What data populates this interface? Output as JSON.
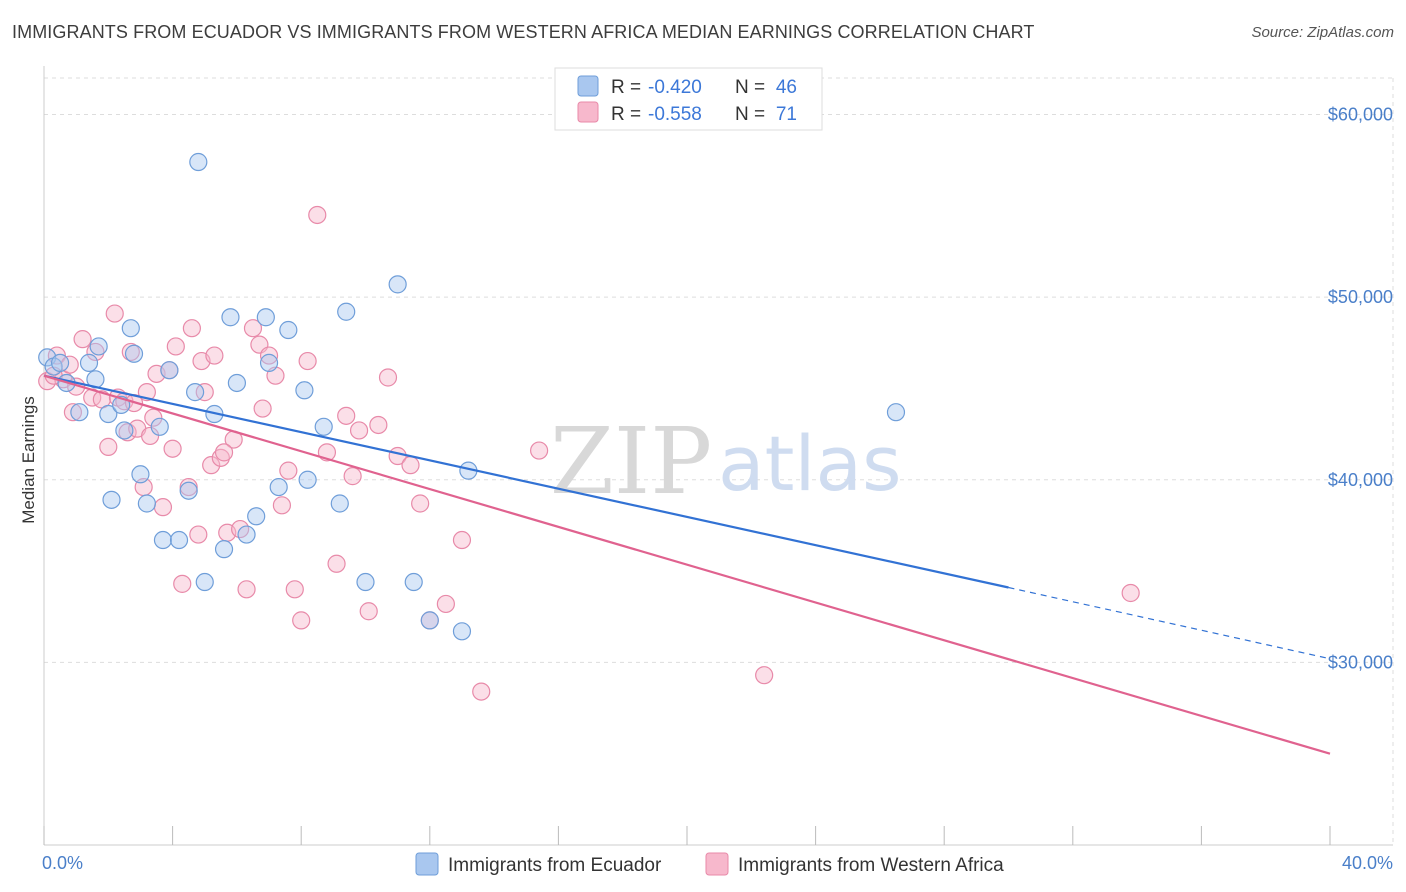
{
  "title": "IMMIGRANTS FROM ECUADOR VS IMMIGRANTS FROM WESTERN AFRICA MEDIAN EARNINGS CORRELATION CHART",
  "source": "Source: ZipAtlas.com",
  "watermark": {
    "zip": "ZIP",
    "atlas": "atlas"
  },
  "colors": {
    "ecuador_fill": "#a9c7ef",
    "ecuador_stroke": "#6f9ed9",
    "ecuador_line": "#3272d4",
    "africa_fill": "#f7b8cc",
    "africa_stroke": "#e88aa9",
    "africa_line": "#e0628f",
    "tick_label": "#4a7fc9",
    "grid": "#dddddd"
  },
  "legend": {
    "r_label": "R =",
    "n_label": "N =",
    "ecuador": {
      "r": "-0.420",
      "n": "46"
    },
    "africa": {
      "r": "-0.558",
      "n": "71"
    }
  },
  "chart_data": {
    "type": "scatter",
    "title": "IMMIGRANTS FROM ECUADOR VS IMMIGRANTS FROM WESTERN AFRICA MEDIAN EARNINGS CORRELATION CHART",
    "xlabel": "",
    "ylabel": "Median Earnings",
    "xlim": [
      0,
      40
    ],
    "ylim": [
      20000,
      62000
    ],
    "x_tick_labels": {
      "left": "0.0%",
      "right": "40.0%"
    },
    "y_ticks": [
      {
        "value": 30000,
        "label": "$30,000"
      },
      {
        "value": 40000,
        "label": "$40,000"
      },
      {
        "value": 50000,
        "label": "$50,000"
      },
      {
        "value": 60000,
        "label": "$60,000"
      }
    ],
    "grid": true,
    "legend_position": "top-center",
    "series": [
      {
        "name": "Immigrants from Ecuador",
        "color": "#a9c7ef",
        "trend": {
          "x": [
            0,
            30
          ],
          "y": [
            45700,
            34100
          ],
          "dashed_to": [
            40,
            30200
          ]
        },
        "points": [
          [
            0.1,
            46700
          ],
          [
            0.3,
            46200
          ],
          [
            0.5,
            46400
          ],
          [
            0.7,
            45300
          ],
          [
            1.1,
            43700
          ],
          [
            1.4,
            46400
          ],
          [
            1.6,
            45500
          ],
          [
            1.7,
            47300
          ],
          [
            2.0,
            43600
          ],
          [
            2.1,
            38900
          ],
          [
            2.4,
            44100
          ],
          [
            2.5,
            42700
          ],
          [
            2.7,
            48300
          ],
          [
            2.8,
            46900
          ],
          [
            3.0,
            40300
          ],
          [
            3.2,
            38700
          ],
          [
            3.6,
            42900
          ],
          [
            3.7,
            36700
          ],
          [
            3.9,
            46000
          ],
          [
            4.2,
            36700
          ],
          [
            4.5,
            39400
          ],
          [
            4.7,
            44800
          ],
          [
            4.8,
            57400
          ],
          [
            5.0,
            34400
          ],
          [
            5.3,
            43600
          ],
          [
            5.6,
            36200
          ],
          [
            5.8,
            48900
          ],
          [
            6.0,
            45300
          ],
          [
            6.3,
            37000
          ],
          [
            6.6,
            38000
          ],
          [
            6.9,
            48900
          ],
          [
            7.0,
            46400
          ],
          [
            7.3,
            39600
          ],
          [
            7.6,
            48200
          ],
          [
            8.1,
            44900
          ],
          [
            8.2,
            40000
          ],
          [
            8.7,
            42900
          ],
          [
            9.2,
            38700
          ],
          [
            9.4,
            49200
          ],
          [
            10.0,
            34400
          ],
          [
            11.0,
            50700
          ],
          [
            11.5,
            34400
          ],
          [
            12.0,
            32300
          ],
          [
            13.0,
            31700
          ],
          [
            13.2,
            40500
          ],
          [
            26.5,
            43700
          ]
        ]
      },
      {
        "name": "Immigrants from Western Africa",
        "color": "#f7b8cc",
        "trend": {
          "x": [
            0,
            40
          ],
          "y": [
            45700,
            25000
          ]
        },
        "points": [
          [
            0.1,
            45400
          ],
          [
            0.4,
            46800
          ],
          [
            0.6,
            45500
          ],
          [
            0.9,
            43700
          ],
          [
            1.2,
            47700
          ],
          [
            1.5,
            44500
          ],
          [
            1.6,
            47000
          ],
          [
            1.8,
            44400
          ],
          [
            2.0,
            41800
          ],
          [
            2.2,
            49100
          ],
          [
            2.3,
            44500
          ],
          [
            2.5,
            44300
          ],
          [
            2.6,
            42600
          ],
          [
            2.7,
            47000
          ],
          [
            2.9,
            42800
          ],
          [
            3.1,
            39600
          ],
          [
            3.2,
            44800
          ],
          [
            3.4,
            43400
          ],
          [
            3.5,
            45800
          ],
          [
            3.7,
            38500
          ],
          [
            3.9,
            46000
          ],
          [
            4.1,
            47300
          ],
          [
            4.3,
            34300
          ],
          [
            4.5,
            39600
          ],
          [
            4.6,
            48300
          ],
          [
            4.8,
            37000
          ],
          [
            4.9,
            46500
          ],
          [
            5.0,
            44800
          ],
          [
            5.2,
            40800
          ],
          [
            5.3,
            46800
          ],
          [
            5.5,
            41200
          ],
          [
            5.7,
            37100
          ],
          [
            5.9,
            42200
          ],
          [
            6.1,
            37300
          ],
          [
            6.3,
            34000
          ],
          [
            6.5,
            48300
          ],
          [
            6.7,
            47400
          ],
          [
            6.8,
            43900
          ],
          [
            7.0,
            46800
          ],
          [
            7.2,
            45700
          ],
          [
            7.4,
            38600
          ],
          [
            7.6,
            40500
          ],
          [
            7.8,
            34000
          ],
          [
            8.0,
            32300
          ],
          [
            8.2,
            46500
          ],
          [
            8.5,
            54500
          ],
          [
            8.8,
            41500
          ],
          [
            9.1,
            35400
          ],
          [
            9.4,
            43500
          ],
          [
            9.6,
            40200
          ],
          [
            9.8,
            42700
          ],
          [
            10.1,
            32800
          ],
          [
            10.4,
            43000
          ],
          [
            10.7,
            45600
          ],
          [
            11.0,
            41300
          ],
          [
            11.4,
            40800
          ],
          [
            11.7,
            38700
          ],
          [
            12.0,
            32300
          ],
          [
            12.5,
            33200
          ],
          [
            13.0,
            36700
          ],
          [
            13.6,
            28400
          ],
          [
            15.4,
            41600
          ],
          [
            22.4,
            29300
          ],
          [
            33.8,
            33800
          ],
          [
            0.3,
            45700
          ],
          [
            0.8,
            46300
          ],
          [
            1.0,
            45100
          ],
          [
            2.8,
            44200
          ],
          [
            3.3,
            42400
          ],
          [
            4.0,
            41700
          ],
          [
            5.6,
            41500
          ]
        ]
      }
    ]
  }
}
